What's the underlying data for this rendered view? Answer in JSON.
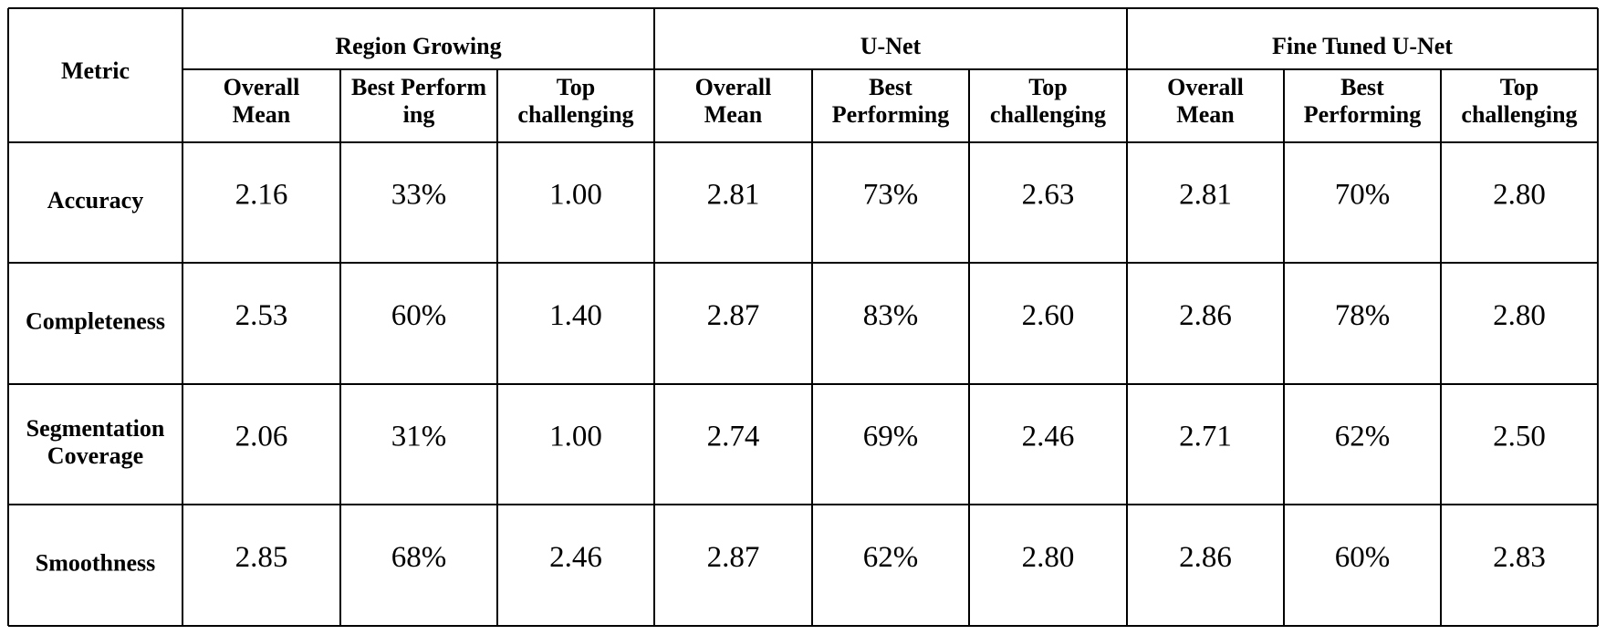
{
  "table": {
    "corner": "Metric",
    "groups": [
      "Region Growing",
      "U-Net",
      "Fine Tuned U-Net"
    ],
    "subheaders": [
      [
        "Overall",
        "Mean"
      ],
      [
        "Best Perform",
        "ing"
      ],
      [
        "Top",
        "challenging"
      ],
      [
        "Overall",
        "Mean"
      ],
      [
        "Best",
        "Performing"
      ],
      [
        "Top",
        "challenging"
      ],
      [
        "Overall",
        "Mean"
      ],
      [
        "Best",
        "Performing"
      ],
      [
        "Top",
        "challenging"
      ]
    ],
    "rows": [
      {
        "metric": [
          "Accuracy"
        ],
        "cells": [
          "2.16",
          "33%",
          "1.00",
          "2.81",
          "73%",
          "2.63",
          "2.81",
          "70%",
          "2.80"
        ]
      },
      {
        "metric": [
          "Completeness"
        ],
        "cells": [
          "2.53",
          "60%",
          "1.40",
          "2.87",
          "83%",
          "2.60",
          "2.86",
          "78%",
          "2.80"
        ]
      },
      {
        "metric": [
          "Segmentation",
          "Coverage"
        ],
        "cells": [
          "2.06",
          "31%",
          "1.00",
          "2.74",
          "69%",
          "2.46",
          "2.71",
          "62%",
          "2.50"
        ]
      },
      {
        "metric": [
          "Smoothness"
        ],
        "cells": [
          "2.85",
          "68%",
          "2.46",
          "2.87",
          "62%",
          "2.80",
          "2.86",
          "60%",
          "2.83"
        ]
      }
    ]
  }
}
